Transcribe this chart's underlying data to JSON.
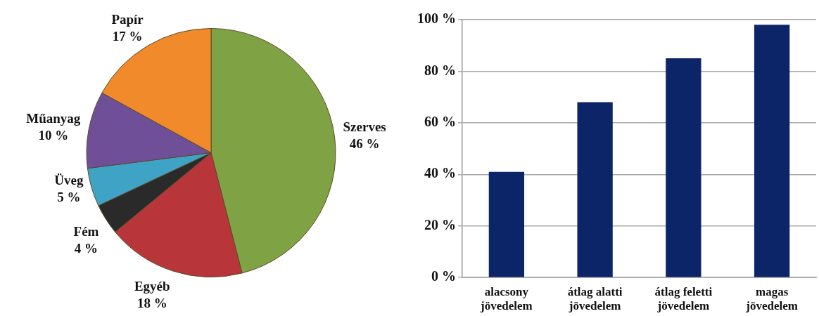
{
  "chart_data": [
    {
      "type": "pie",
      "categories": [
        "Szerves",
        "Egyéb",
        "Fém",
        "Üveg",
        "Műanyag",
        "Papír"
      ],
      "values": [
        46,
        18,
        4,
        5,
        10,
        17
      ],
      "value_labels": [
        "46 %",
        "18 %",
        "4 %",
        "5 %",
        "10 %",
        "17 %"
      ],
      "colors": [
        "#7fa244",
        "#b8363a",
        "#2a2a2a",
        "#3ea3c4",
        "#6e4f98",
        "#f08a2a"
      ],
      "legend": false
    },
    {
      "type": "bar",
      "categories": [
        "alacsony jövedelem",
        "átlag alatti jövedelem",
        "átlag feletti jövedelem",
        "magas jövedelem"
      ],
      "values": [
        41,
        68,
        85,
        98
      ],
      "color": "#0c2468",
      "ylim": [
        0,
        100
      ],
      "yticks": [
        {
          "value": 0,
          "label": "0 %"
        },
        {
          "value": 20,
          "label": "20 %"
        },
        {
          "value": 40,
          "label": "40 %"
        },
        {
          "value": 60,
          "label": "60 %"
        },
        {
          "value": 80,
          "label": "80 %"
        },
        {
          "value": 100,
          "label": "100 %"
        }
      ],
      "grid": "y",
      "legend": false
    }
  ]
}
